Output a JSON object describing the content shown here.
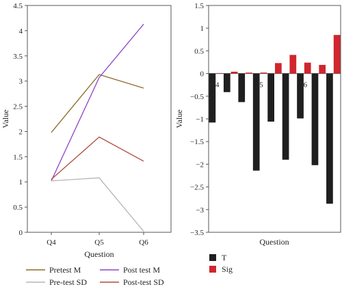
{
  "chart_data": [
    {
      "type": "line",
      "xlabel": "Question",
      "ylabel": "Value",
      "categories": [
        "Q4",
        "Q5",
        "Q6"
      ],
      "ylim": [
        0,
        4.5
      ],
      "yticks": [
        "0",
        "0.5",
        "1",
        "1.5",
        "2",
        "2.5",
        "3",
        "3.5",
        "4",
        "4.5"
      ],
      "legend_placement": "bottom",
      "series": [
        {
          "name": "Pretest M",
          "color": "#8b6b2a",
          "values": [
            1.98,
            3.13,
            2.86
          ]
        },
        {
          "name": "Post test M",
          "color": "#8e44c9",
          "values": [
            1.02,
            3.07,
            4.13
          ]
        },
        {
          "name": "Pre-test SD",
          "color": "#b5b5b5",
          "values": [
            1.02,
            1.08,
            0.02
          ]
        },
        {
          "name": "Post-test SD",
          "color": "#b04a3a",
          "values": [
            1.05,
            1.89,
            1.41
          ]
        }
      ]
    },
    {
      "type": "bar",
      "xlabel": "Question",
      "ylabel": "Value",
      "ylim": [
        -3.5,
        1.5
      ],
      "yticks": [
        "1.5",
        "1",
        "0.5",
        "0",
        "−0.5",
        "−1",
        "−1.5",
        "−2",
        "−2.5",
        "−3",
        "−3.5"
      ],
      "group_labels": [
        "Q4",
        "Q5",
        "Q6"
      ],
      "legend_placement": "bottom-left",
      "series": [
        {
          "name": "T",
          "color": "#1f1f1f",
          "values": [
            -1.08,
            -0.41,
            -0.63,
            -2.14,
            -1.06,
            -1.9,
            -0.99,
            -2.02,
            -2.87
          ]
        },
        {
          "name": "Sig",
          "color": "#d0262e",
          "values": [
            0.01,
            0.04,
            0.02,
            0.02,
            0.23,
            0.41,
            0.24,
            0.19,
            0.85
          ]
        }
      ]
    }
  ]
}
